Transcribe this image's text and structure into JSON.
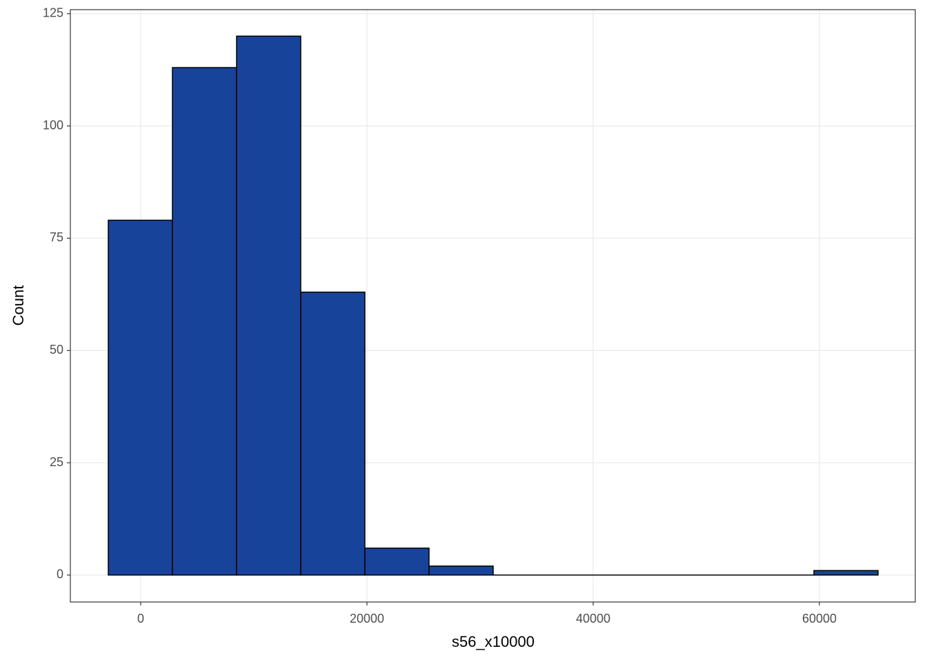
{
  "chart_data": {
    "type": "histogram",
    "xlabel": "s56_x10000",
    "ylabel": "Count",
    "bins": [
      -2866,
      2805,
      8476,
      14147,
      19818,
      25489,
      31160,
      36831,
      42502,
      48173,
      53844,
      59515,
      65186
    ],
    "values": [
      79,
      113,
      120,
      63,
      6,
      2,
      0,
      0,
      0,
      0,
      0,
      1
    ],
    "color": "#18439a",
    "xlim": [
      -6220,
      68476
    ],
    "ylim": [
      -6,
      125.9
    ],
    "xticks": [
      0,
      20000,
      40000,
      60000
    ],
    "yticks": [
      0,
      25,
      50,
      75,
      100,
      125
    ],
    "grid": true
  }
}
